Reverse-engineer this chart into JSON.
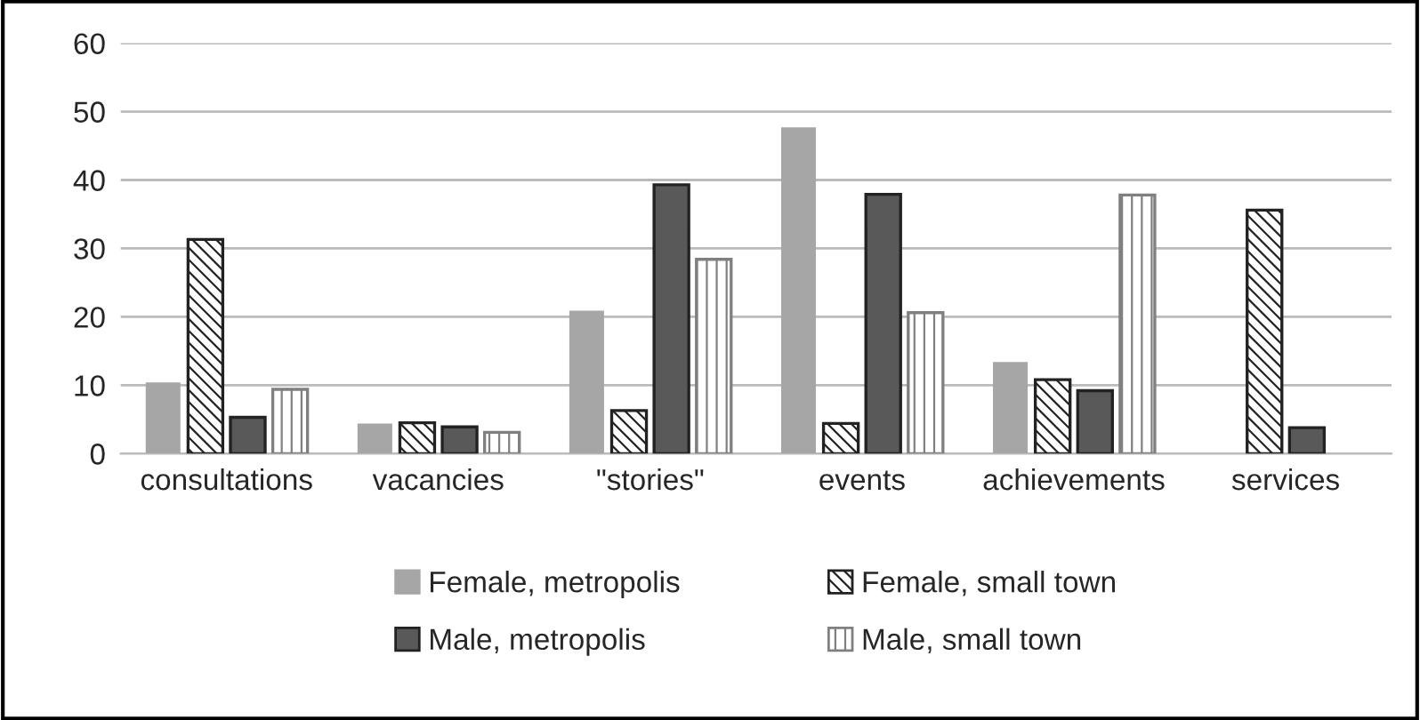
{
  "chart_data": {
    "type": "bar",
    "categories": [
      "consultations",
      "vacancies",
      "\"stories\"",
      "events",
      "achievements",
      "services"
    ],
    "series": [
      {
        "name": "Female, metropolis",
        "color": "#a6a6a6",
        "values": [
          10.4,
          4.4,
          20.9,
          47.7,
          13.4,
          null
        ]
      },
      {
        "name": "Female, small town",
        "color": "#222222",
        "values": [
          31.3,
          4.5,
          6.3,
          4.4,
          10.8,
          35.6
        ]
      },
      {
        "name": "Male, metropolis",
        "color": "#595959",
        "values": [
          5.3,
          3.9,
          39.3,
          37.9,
          9.2,
          3.8
        ]
      },
      {
        "name": "Male, small town",
        "color": "#808080",
        "values": [
          9.4,
          3.1,
          28.4,
          20.6,
          37.8,
          null
        ]
      }
    ],
    "ylim": [
      0,
      60
    ],
    "yticks": [
      0,
      10,
      20,
      30,
      40,
      50,
      60
    ],
    "grid": "y",
    "legend": "bottom"
  }
}
